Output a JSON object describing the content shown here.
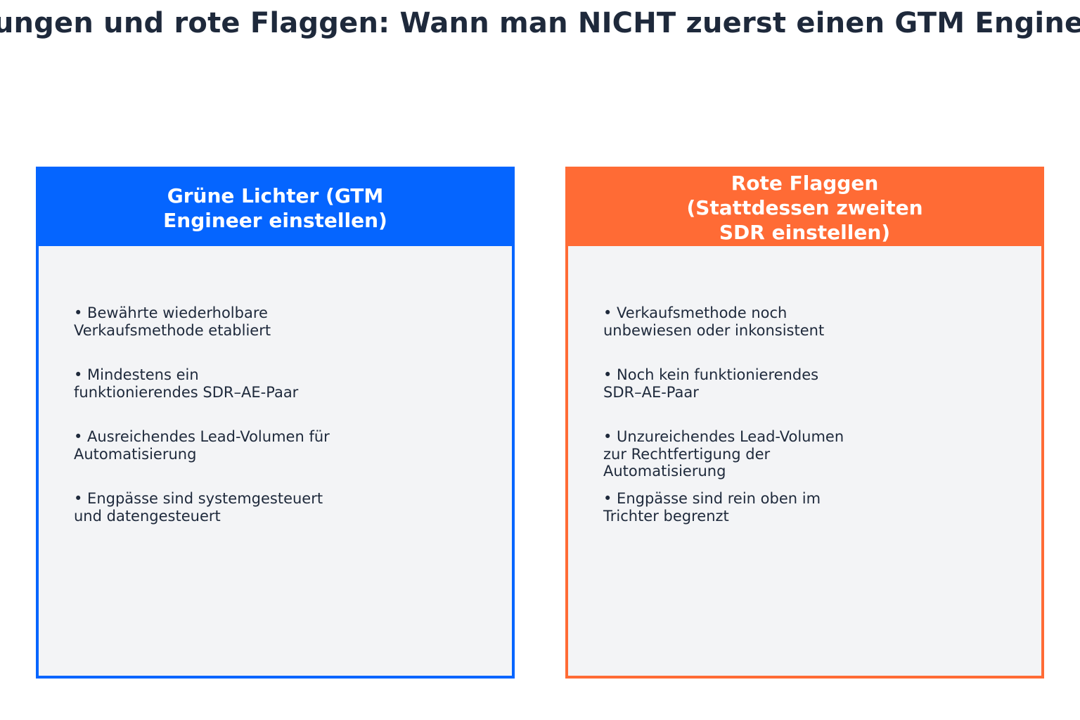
{
  "title": "zungen und rote Flaggen: Wann man NICHT zuerst einen GTM Enginee",
  "green": {
    "heading_line1": "Grüne Lichter (GTM",
    "heading_line2": "Engineer einstellen)",
    "border_color": "#0565ff",
    "items": [
      {
        "line1": "•  Bewährte wiederholbare",
        "line2": "Verkaufsmethode etabliert"
      },
      {
        "line1": "•  Mindestens ein",
        "line2": "funktionierendes SDR–AE-Paar"
      },
      {
        "line1": "•  Ausreichendes Lead-Volumen für",
        "line2": "Automatisierung"
      },
      {
        "line1": "•  Engpässe sind systemgesteuert",
        "line2": "und datengesteuert"
      }
    ]
  },
  "red": {
    "heading_line1": "Rote Flaggen",
    "heading_line2": "(Stattdessen zweiten",
    "heading_line3": "SDR einstellen)",
    "border_color": "#ff6b35",
    "items": [
      {
        "line1": "•  Verkaufsmethode noch",
        "line2": "unbewiesen oder inkonsistent"
      },
      {
        "line1": "•  Noch kein funktionierendes",
        "line2": "SDR–AE-Paar"
      },
      {
        "line1": "•  Unzureichendes Lead-Volumen",
        "line2": "zur Rechtfertigung der",
        "line3": "Automatisierung"
      },
      {
        "line1": "•  Engpässe sind rein oben im",
        "line2": "Trichter begrenzt"
      }
    ]
  }
}
